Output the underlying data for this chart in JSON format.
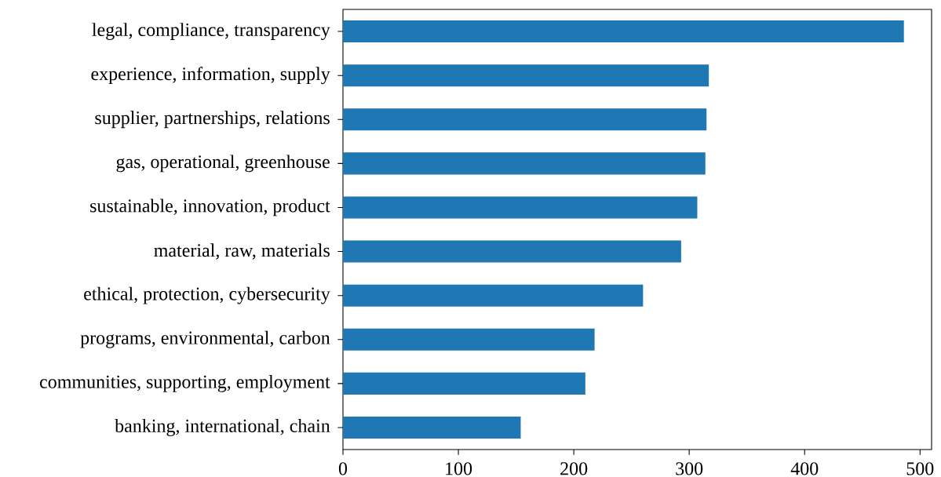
{
  "chart_data": {
    "type": "bar",
    "orientation": "horizontal",
    "categories": [
      "legal, compliance, transparency",
      "experience, information, supply",
      "supplier, partnerships, relations",
      "gas, operational, greenhouse",
      "sustainable, innovation, product",
      "material, raw, materials",
      "ethical, protection, cybersecurity",
      "programs, environmental, carbon",
      "communities, supporting, employment",
      "banking, international, chain"
    ],
    "values": [
      486,
      317,
      315,
      314,
      307,
      293,
      260,
      218,
      210,
      154
    ],
    "color": "#1f77b4",
    "xlim": [
      0,
      510
    ],
    "xticks": [
      0,
      100,
      200,
      300,
      400,
      500
    ]
  }
}
